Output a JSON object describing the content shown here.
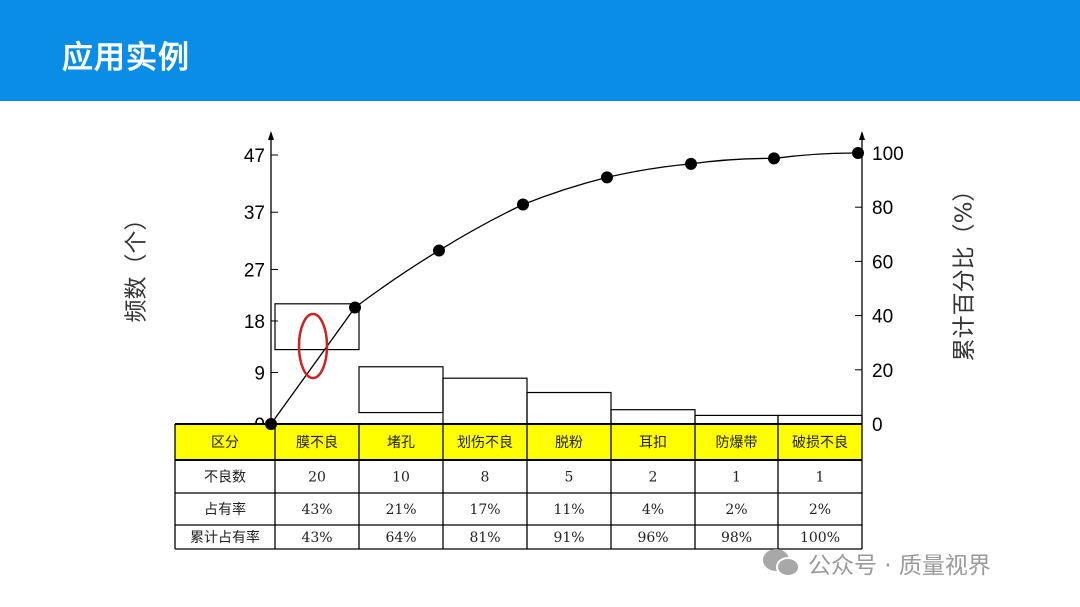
{
  "slide": {
    "title": "应用实例"
  },
  "watermark": {
    "text": "公众号 · 质量视界"
  },
  "colors": {
    "header": "#0a8de6",
    "table_header": "#ffff00",
    "highlight_ellipse": "#d02020"
  },
  "chart_data": {
    "type": "pareto",
    "ylabel_left": "频数（个）",
    "ylabel_right": "累计百分比（%）",
    "left_ticks": [
      "0",
      "9",
      "18",
      "27",
      "37",
      "47"
    ],
    "left_tick_values": [
      0,
      9,
      18,
      27,
      37,
      47
    ],
    "right_ticks": [
      "0",
      "20",
      "40",
      "60",
      "80",
      "100"
    ],
    "right_tick_values": [
      0,
      20,
      40,
      60,
      80,
      100
    ],
    "ylim_left": [
      0,
      47
    ],
    "ylim_right": [
      0,
      100
    ],
    "categories": [
      "膜不良",
      "堵孔",
      "划伤不良",
      "脱粉",
      "耳扣",
      "防爆带",
      "破损不良"
    ],
    "counts": [
      20,
      10,
      8,
      5,
      2,
      1,
      1
    ],
    "cumulative_percent": [
      0,
      43,
      64,
      81,
      91,
      96,
      98,
      100
    ],
    "table": {
      "header_label": "区分",
      "rows": [
        {
          "label": "不良数",
          "values": [
            "20",
            "10",
            "8",
            "5",
            "2",
            "1",
            "1"
          ]
        },
        {
          "label": "占有率",
          "values": [
            "43%",
            "21%",
            "17%",
            "11%",
            "4%",
            "2%",
            "2%"
          ]
        },
        {
          "label": "累计占有率",
          "values": [
            "43%",
            "64%",
            "81%",
            "91%",
            "96%",
            "98%",
            "100%"
          ]
        }
      ]
    }
  }
}
